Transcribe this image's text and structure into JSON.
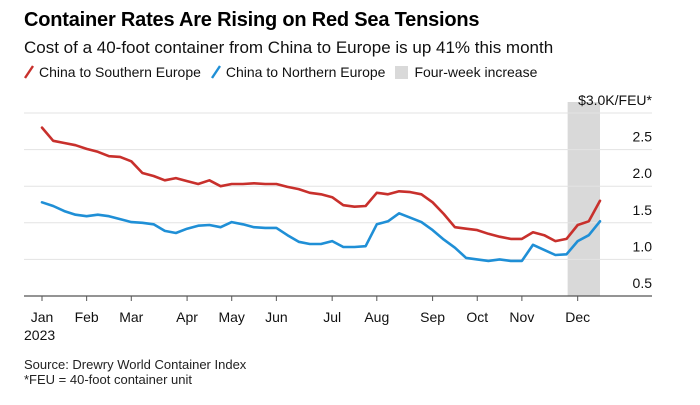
{
  "chart_data": {
    "type": "line",
    "title": "Container Rates Are Rising on Red Sea Tensions",
    "subtitle": "Cost of a 40-foot container from China to Europe is up 41% this month",
    "ylabel": "$3.0K/FEU*",
    "xlabel": "",
    "ylim": [
      0.5,
      3.0
    ],
    "yticks": [
      {
        "value": 2.5,
        "label": "2.5"
      },
      {
        "value": 2.0,
        "label": "2.0"
      },
      {
        "value": 1.5,
        "label": "1.5"
      },
      {
        "value": 1.0,
        "label": "1.0"
      },
      {
        "value": 0.5,
        "label": "0.5"
      }
    ],
    "top_label_value": 3.0,
    "x_unit": "week index (weekly, Jan–Dec 2023)",
    "x_count": 51,
    "xticks": [
      {
        "week": 0.0,
        "label": "Jan",
        "sublabel": "2023"
      },
      {
        "week": 4.0,
        "label": "Feb"
      },
      {
        "week": 8.0,
        "label": "Mar"
      },
      {
        "week": 13.0,
        "label": "Apr"
      },
      {
        "week": 17.0,
        "label": "May"
      },
      {
        "week": 21.0,
        "label": "Jun"
      },
      {
        "week": 26.0,
        "label": "Jul"
      },
      {
        "week": 30.0,
        "label": "Aug"
      },
      {
        "week": 35.0,
        "label": "Sep"
      },
      {
        "week": 39.0,
        "label": "Oct"
      },
      {
        "week": 43.0,
        "label": "Nov"
      },
      {
        "week": 48.0,
        "label": "Dec"
      }
    ],
    "shaded_region": {
      "label": "Four-week increase",
      "from_week": 47.1,
      "to_week": 50.0,
      "color": "#d9d9d9"
    },
    "grid": true,
    "legend_position": "top-left",
    "series": [
      {
        "name": "China to Southern Europe",
        "color": "#c8302c",
        "values": [
          2.8,
          2.62,
          2.59,
          2.56,
          2.51,
          2.47,
          2.41,
          2.4,
          2.34,
          2.18,
          2.14,
          2.08,
          2.11,
          2.07,
          2.03,
          2.08,
          2.0,
          2.03,
          2.03,
          2.04,
          2.03,
          2.03,
          1.99,
          1.96,
          1.91,
          1.89,
          1.85,
          1.74,
          1.72,
          1.73,
          1.91,
          1.89,
          1.93,
          1.92,
          1.89,
          1.78,
          1.62,
          1.44,
          1.42,
          1.4,
          1.35,
          1.31,
          1.28,
          1.28,
          1.37,
          1.33,
          1.25,
          1.28,
          1.47,
          1.52,
          1.8
        ]
      },
      {
        "name": "China to Northern Europe",
        "color": "#1f8fd6",
        "values": [
          1.78,
          1.73,
          1.66,
          1.61,
          1.59,
          1.61,
          1.59,
          1.55,
          1.51,
          1.5,
          1.48,
          1.39,
          1.36,
          1.42,
          1.46,
          1.47,
          1.44,
          1.51,
          1.48,
          1.44,
          1.43,
          1.43,
          1.33,
          1.24,
          1.21,
          1.21,
          1.25,
          1.17,
          1.17,
          1.18,
          1.48,
          1.52,
          1.63,
          1.57,
          1.51,
          1.4,
          1.27,
          1.16,
          1.02,
          1.0,
          0.98,
          1.0,
          0.98,
          0.98,
          1.2,
          1.13,
          1.06,
          1.07,
          1.25,
          1.33,
          1.52
        ]
      }
    ]
  },
  "legend": {
    "items": [
      {
        "label": "China to Southern Europe",
        "color": "#c8302c",
        "kind": "line"
      },
      {
        "label": "China to Northern Europe",
        "color": "#1f8fd6",
        "kind": "line"
      },
      {
        "label": "Four-week increase",
        "color": "#d9d9d9",
        "kind": "box"
      }
    ]
  },
  "footer": {
    "source": "Source: Drewry World Container Index",
    "note": "*FEU = 40-foot container unit"
  }
}
